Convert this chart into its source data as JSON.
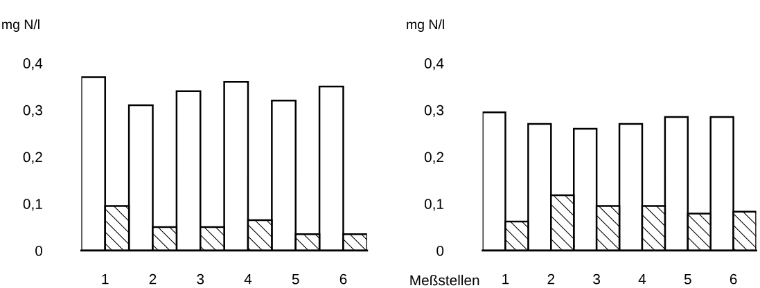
{
  "chart_data": [
    {
      "type": "bar",
      "ylabel": "mg N/l",
      "categories": [
        "1",
        "2",
        "3",
        "4",
        "5",
        "6"
      ],
      "series": [
        {
          "color": "#ffffff",
          "values": [
            0.37,
            0.31,
            0.34,
            0.36,
            0.32,
            0.35
          ]
        },
        {
          "color": "#000000",
          "values": [
            0.095,
            0.05,
            0.05,
            0.065,
            0.035,
            0.035
          ]
        }
      ],
      "ylim": [
        0,
        0.4
      ],
      "yticks": [
        {
          "value": 0,
          "label": "0"
        },
        {
          "value": 0.1,
          "label": "0,1"
        },
        {
          "value": 0.2,
          "label": "0,2"
        },
        {
          "value": 0.3,
          "label": "0,3"
        },
        {
          "value": 0.4,
          "label": "0,4"
        }
      ]
    },
    {
      "type": "bar",
      "ylabel": "mg N/l",
      "xlabel": "Meßstellen",
      "categories": [
        "1",
        "2",
        "3",
        "4",
        "5",
        "6"
      ],
      "series": [
        {
          "color": "#ffffff",
          "values": [
            0.295,
            0.27,
            0.26,
            0.27,
            0.285,
            0.285
          ]
        },
        {
          "color": "#000000",
          "values": [
            0.062,
            0.118,
            0.095,
            0.095,
            0.079,
            0.083
          ]
        }
      ],
      "ylim": [
        0,
        0.4
      ],
      "yticks": [
        {
          "value": 0,
          "label": "0"
        },
        {
          "value": 0.1,
          "label": "0,1"
        },
        {
          "value": 0.2,
          "label": "0,2"
        },
        {
          "value": 0.3,
          "label": "0,3"
        },
        {
          "value": 0.4,
          "label": "0,4"
        }
      ]
    }
  ]
}
